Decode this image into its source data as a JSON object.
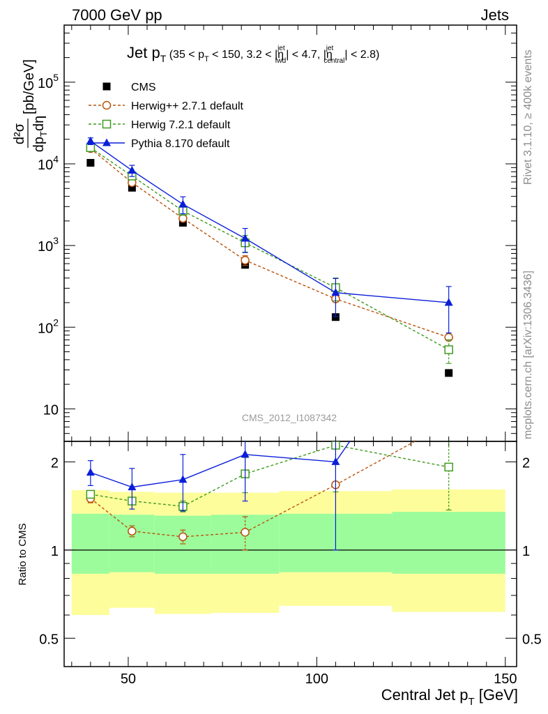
{
  "header": {
    "left": "7000 GeV pp",
    "right": "Jets"
  },
  "side_labels": {
    "rivet": "Rivet 3.1.10, ≥ 400k events",
    "mcplots": "mcplots.cern.ch [arXiv:1306.3436]"
  },
  "watermark": "CMS_2012_I1087342",
  "chart_data": {
    "type": "line",
    "title": "Jet p_T (35 < p_T < 150, 3.2 < η^jet_fwd < 4.7, η^jet_central < 2.8)",
    "xlabel": "Central Jet p_T [GeV]",
    "ylabel": "d²σ / dp_T dη [pb/GeV]",
    "ratio_ylabel": "Ratio to CMS",
    "x_range": [
      33,
      153
    ],
    "y_range": [
      4,
      500000
    ],
    "y_scale": "log",
    "ratio_range": [
      0.4,
      2.35
    ],
    "ratio_scale": "log",
    "x_ticks": [
      50,
      100,
      150
    ],
    "y_tick_labels": [
      "10",
      "10^2",
      "10^3",
      "10^4",
      "10^5"
    ],
    "ratio_tick_labels": [
      "0.5",
      "1",
      "2"
    ],
    "legend_position": "top-left",
    "x": [
      40,
      51,
      64.5,
      81,
      105,
      135
    ],
    "x_bins": [
      [
        35,
        45
      ],
      [
        45,
        57
      ],
      [
        57,
        72
      ],
      [
        72,
        90
      ],
      [
        90,
        120
      ],
      [
        120,
        150
      ]
    ],
    "bands": {
      "inner_color": "#9cfc9c",
      "outer_color": "#fdfd9c",
      "inner": [
        [
          0.83,
          1.33
        ],
        [
          0.84,
          1.32
        ],
        [
          0.83,
          1.31
        ],
        [
          0.83,
          1.32
        ],
        [
          0.84,
          1.33
        ],
        [
          0.83,
          1.35
        ]
      ],
      "outer": [
        [
          0.6,
          1.6
        ],
        [
          0.635,
          1.58
        ],
        [
          0.605,
          1.57
        ],
        [
          0.61,
          1.57
        ],
        [
          0.645,
          1.59
        ],
        [
          0.615,
          1.61
        ]
      ]
    },
    "series": [
      {
        "name": "CMS",
        "style": "data",
        "color": "#000000",
        "values": [
          10300,
          5100,
          1900,
          580,
          133,
          27.5
        ],
        "ratio": [
          1,
          1,
          1,
          1,
          1,
          1
        ]
      },
      {
        "name": "Herwig++ 2.7.1 default",
        "style": "circle-dashed",
        "color": "#b8520a",
        "values": [
          15400,
          5900,
          2150,
          660,
          222,
          75
        ],
        "errors": [
          0,
          0,
          150,
          90,
          0,
          0
        ],
        "ratio": [
          1.5,
          1.16,
          1.11,
          1.15,
          1.67,
          2.72
        ],
        "ratio_errors": [
          0.05,
          0.05,
          0.06,
          0.15,
          0,
          0
        ]
      },
      {
        "name": "Herwig 7.2.1 default",
        "style": "square-dashed",
        "color": "#3f9a1f",
        "values": [
          15800,
          7100,
          2650,
          1080,
          305,
          53
        ],
        "errors": [
          0,
          0,
          300,
          250,
          95,
          17
        ],
        "ratio": [
          1.55,
          1.47,
          1.41,
          1.82,
          2.28,
          1.92
        ],
        "ratio_errors": [
          0.04,
          0.04,
          0.06,
          0.25,
          0.7,
          0.55
        ]
      },
      {
        "name": "Pythia 8.170 default",
        "style": "triangle-solid",
        "color": "#0a1ed8",
        "values": [
          19000,
          8300,
          3200,
          1220,
          265,
          200
        ],
        "errors": [
          1800,
          1300,
          750,
          400,
          130,
          115
        ],
        "ratio": [
          1.84,
          1.64,
          1.74,
          2.12,
          2,
          7.27
        ],
        "ratio_errors": [
          0.18,
          0.26,
          0.38,
          0.65,
          1.0,
          0
        ]
      }
    ]
  }
}
